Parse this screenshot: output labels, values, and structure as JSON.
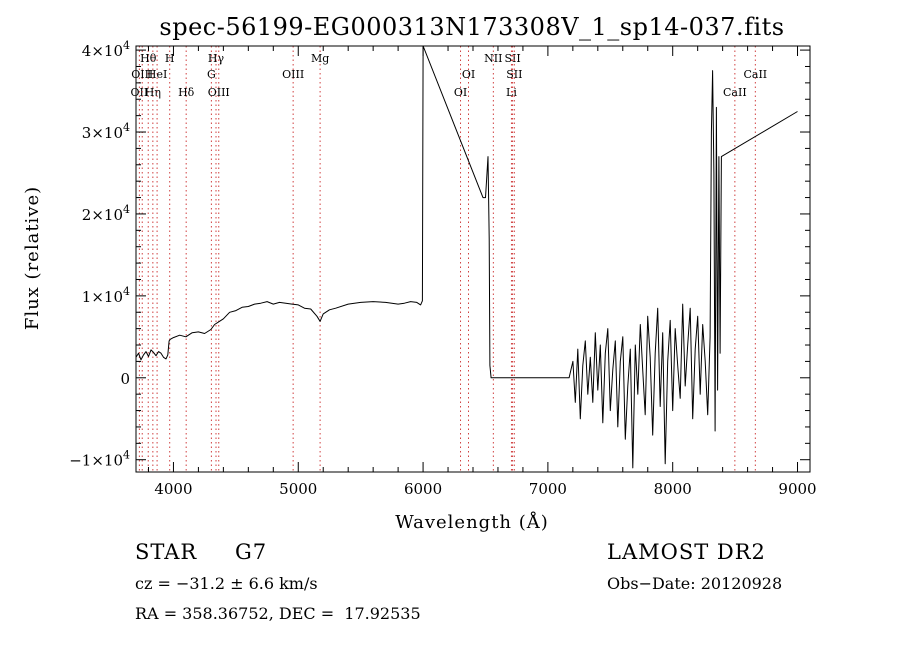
{
  "chart_data": {
    "type": "line",
    "title": "spec-56199-EG000313N173308V_1_sp14-037.fits",
    "xlabel": "Wavelength (Å)",
    "ylabel": "Flux (relative)",
    "xlim": [
      3700,
      9100
    ],
    "ylim": [
      -11500,
      40500
    ],
    "x_ticks": [
      4000,
      5000,
      6000,
      7000,
      8000,
      9000
    ],
    "y_ticks": [
      {
        "value": -10000,
        "mant": "−1×10",
        "exp": "4"
      },
      {
        "value": 0,
        "mant": "0",
        "exp": ""
      },
      {
        "value": 10000,
        "mant": "1×10",
        "exp": "4"
      },
      {
        "value": 20000,
        "mant": "2×10",
        "exp": "4"
      },
      {
        "value": 30000,
        "mant": "3×10",
        "exp": "4"
      },
      {
        "value": 40000,
        "mant": "4×10",
        "exp": "4"
      }
    ],
    "grid": false,
    "line_marks": [
      {
        "x": 3727,
        "row": 2,
        "label": "OII"
      },
      {
        "x": 3750,
        "row": 1,
        "label": "OIII"
      },
      {
        "x": 3798,
        "row": 0,
        "label": "Hθ"
      },
      {
        "x": 3835,
        "row": 2,
        "label": "Hη"
      },
      {
        "x": 3869,
        "row": 1,
        "label": "HeI"
      },
      {
        "x": 3970,
        "row": 0,
        "label": "H"
      },
      {
        "x": 4102,
        "row": 2,
        "label": "Hδ"
      },
      {
        "x": 4304,
        "row": 1,
        "label": "G"
      },
      {
        "x": 4341,
        "row": 0,
        "label": "Hγ"
      },
      {
        "x": 4363,
        "row": 2,
        "label": "OIII"
      },
      {
        "x": 4959,
        "row": 1,
        "label": "OIII"
      },
      {
        "x": 5175,
        "row": 0,
        "label": "Mg"
      },
      {
        "x": 6300,
        "row": 2,
        "label": "OI"
      },
      {
        "x": 6364,
        "row": 1,
        "label": "OI"
      },
      {
        "x": 6563,
        "row": 0,
        "label": "NII"
      },
      {
        "x": 6708,
        "row": 2,
        "label": "Li"
      },
      {
        "x": 6717,
        "row": 0,
        "label": "SII"
      },
      {
        "x": 6731,
        "row": 1,
        "label": "SII"
      },
      {
        "x": 8498,
        "row": 2,
        "label": "CaII"
      },
      {
        "x": 8662,
        "row": 1,
        "label": "CaII"
      }
    ],
    "series": [
      {
        "color": "#000000",
        "x": [
          3700,
          3720,
          3740,
          3760,
          3780,
          3800,
          3820,
          3840,
          3860,
          3880,
          3900,
          3920,
          3940,
          3955,
          3965,
          3975,
          4000,
          4050,
          4100,
          4150,
          4200,
          4250,
          4300,
          4330,
          4360,
          4400,
          4450,
          4500,
          4550,
          4600,
          4650,
          4700,
          4750,
          4800,
          4850,
          4900,
          4950,
          5000,
          5050,
          5100,
          5150,
          5175,
          5200,
          5250,
          5300,
          5400,
          5500,
          5600,
          5700,
          5800,
          5850,
          5900,
          5950,
          5980,
          5995,
          6000,
          6480,
          6500,
          6520,
          6530,
          6535,
          6545,
          6555,
          6560,
          7170,
          7200,
          7220,
          7240,
          7260,
          7280,
          7300,
          7320,
          7340,
          7360,
          7380,
          7400,
          7420,
          7440,
          7460,
          7480,
          7500,
          7520,
          7540,
          7560,
          7580,
          7600,
          7620,
          7640,
          7660,
          7680,
          7700,
          7720,
          7740,
          7760,
          7780,
          7800,
          7820,
          7840,
          7860,
          7880,
          7900,
          7920,
          7940,
          7960,
          7980,
          8000,
          8020,
          8040,
          8060,
          8080,
          8100,
          8120,
          8140,
          8160,
          8180,
          8200,
          8220,
          8240,
          8260,
          8280,
          8300,
          8310,
          8320,
          8330,
          8340,
          8350,
          8360,
          8370,
          8380,
          8390,
          9000
        ],
        "y": [
          2500,
          3000,
          2200,
          2800,
          3200,
          2600,
          3400,
          3100,
          2700,
          3200,
          3000,
          2500,
          2300,
          2800,
          4500,
          4700,
          4900,
          5200,
          5000,
          5500,
          5600,
          5400,
          5900,
          6500,
          6800,
          7200,
          8000,
          8200,
          8600,
          8700,
          9000,
          9100,
          9300,
          9000,
          9200,
          9100,
          9000,
          8900,
          8500,
          8400,
          7500,
          6900,
          7800,
          8300,
          8500,
          9000,
          9200,
          9300,
          9200,
          9000,
          9100,
          9300,
          9200,
          8900,
          9400,
          40500,
          22000,
          22000,
          27000,
          17000,
          1500,
          0,
          0,
          0,
          0,
          2000,
          -3000,
          3500,
          -5000,
          1500,
          4500,
          -2000,
          2500,
          -3000,
          5500,
          -1500,
          4000,
          -5500,
          3000,
          6000,
          -4000,
          1000,
          4500,
          -6000,
          2000,
          5000,
          -7500,
          -1000,
          3500,
          -11000,
          4000,
          -2000,
          6500,
          1000,
          -4500,
          7500,
          2500,
          -7000,
          3000,
          8500,
          -3500,
          5500,
          -10500,
          2000,
          7000,
          -4000,
          6000,
          1500,
          -2500,
          9000,
          -1000,
          4000,
          8500,
          -5000,
          3500,
          7500,
          -2000,
          6500,
          2000,
          -4500,
          5000,
          30000,
          37500,
          25000,
          -6500,
          33000,
          -1500,
          27000,
          3000,
          27000,
          32500
        ]
      }
    ]
  },
  "info": {
    "object_class": "STAR",
    "subclass": "G7",
    "redshift": "cz = −31.2 ± 6.6 km/s",
    "coords": "RA = 358.36752, DEC =  17.92535",
    "survey": "LAMOST DR2",
    "obs_date": "Obs−Date: 20120928"
  }
}
